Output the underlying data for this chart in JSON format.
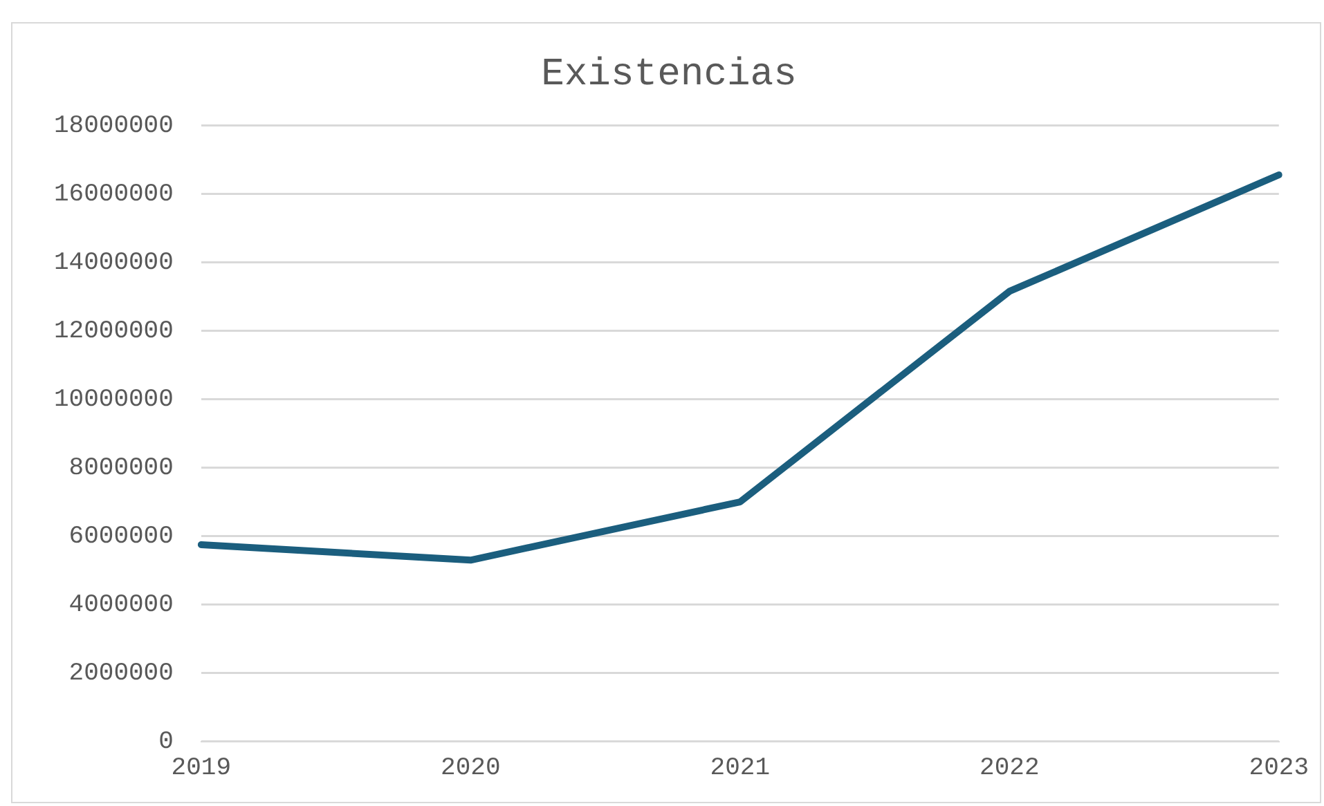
{
  "chart_data": {
    "type": "line",
    "title": "Existencias",
    "categories": [
      "2019",
      "2020",
      "2021",
      "2022",
      "2023"
    ],
    "series": [
      {
        "color": "#1b5e7e",
        "values": [
          5750000,
          5300000,
          7000000,
          13150000,
          16550000
        ]
      }
    ],
    "ylim": [
      0,
      18000000
    ],
    "yticks": [
      0,
      2000000,
      4000000,
      6000000,
      8000000,
      10000000,
      12000000,
      14000000,
      16000000,
      18000000
    ],
    "grid": "y",
    "legend": false,
    "marker": "none"
  }
}
